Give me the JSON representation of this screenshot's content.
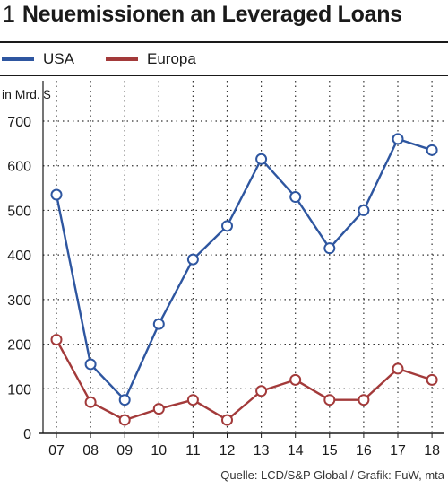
{
  "header": {
    "number": "1",
    "title": "Neuemissionen an Leveraged Loans"
  },
  "legend": [
    {
      "label": "USA",
      "color": "#2e56a0"
    },
    {
      "label": "Europa",
      "color": "#a33a3a"
    }
  ],
  "source": "Quelle: LCD/S&P Global / Grafik: FuW, mta",
  "chart_data": {
    "type": "line",
    "unit_label": "in Mrd. $",
    "categories": [
      "07",
      "08",
      "09",
      "10",
      "11",
      "12",
      "13",
      "14",
      "15",
      "16",
      "17",
      "18"
    ],
    "ylim": [
      0,
      700
    ],
    "yticks": [
      0,
      100,
      200,
      300,
      400,
      500,
      600,
      700
    ],
    "grid": true,
    "legend_position": "top-left",
    "series": [
      {
        "name": "USA",
        "color": "#2e56a0",
        "values": [
          535,
          155,
          75,
          245,
          390,
          465,
          615,
          530,
          415,
          500,
          660,
          635
        ]
      },
      {
        "name": "Europa",
        "color": "#a33a3a",
        "values": [
          210,
          70,
          30,
          55,
          75,
          30,
          95,
          120,
          75,
          75,
          145,
          120
        ]
      }
    ]
  }
}
